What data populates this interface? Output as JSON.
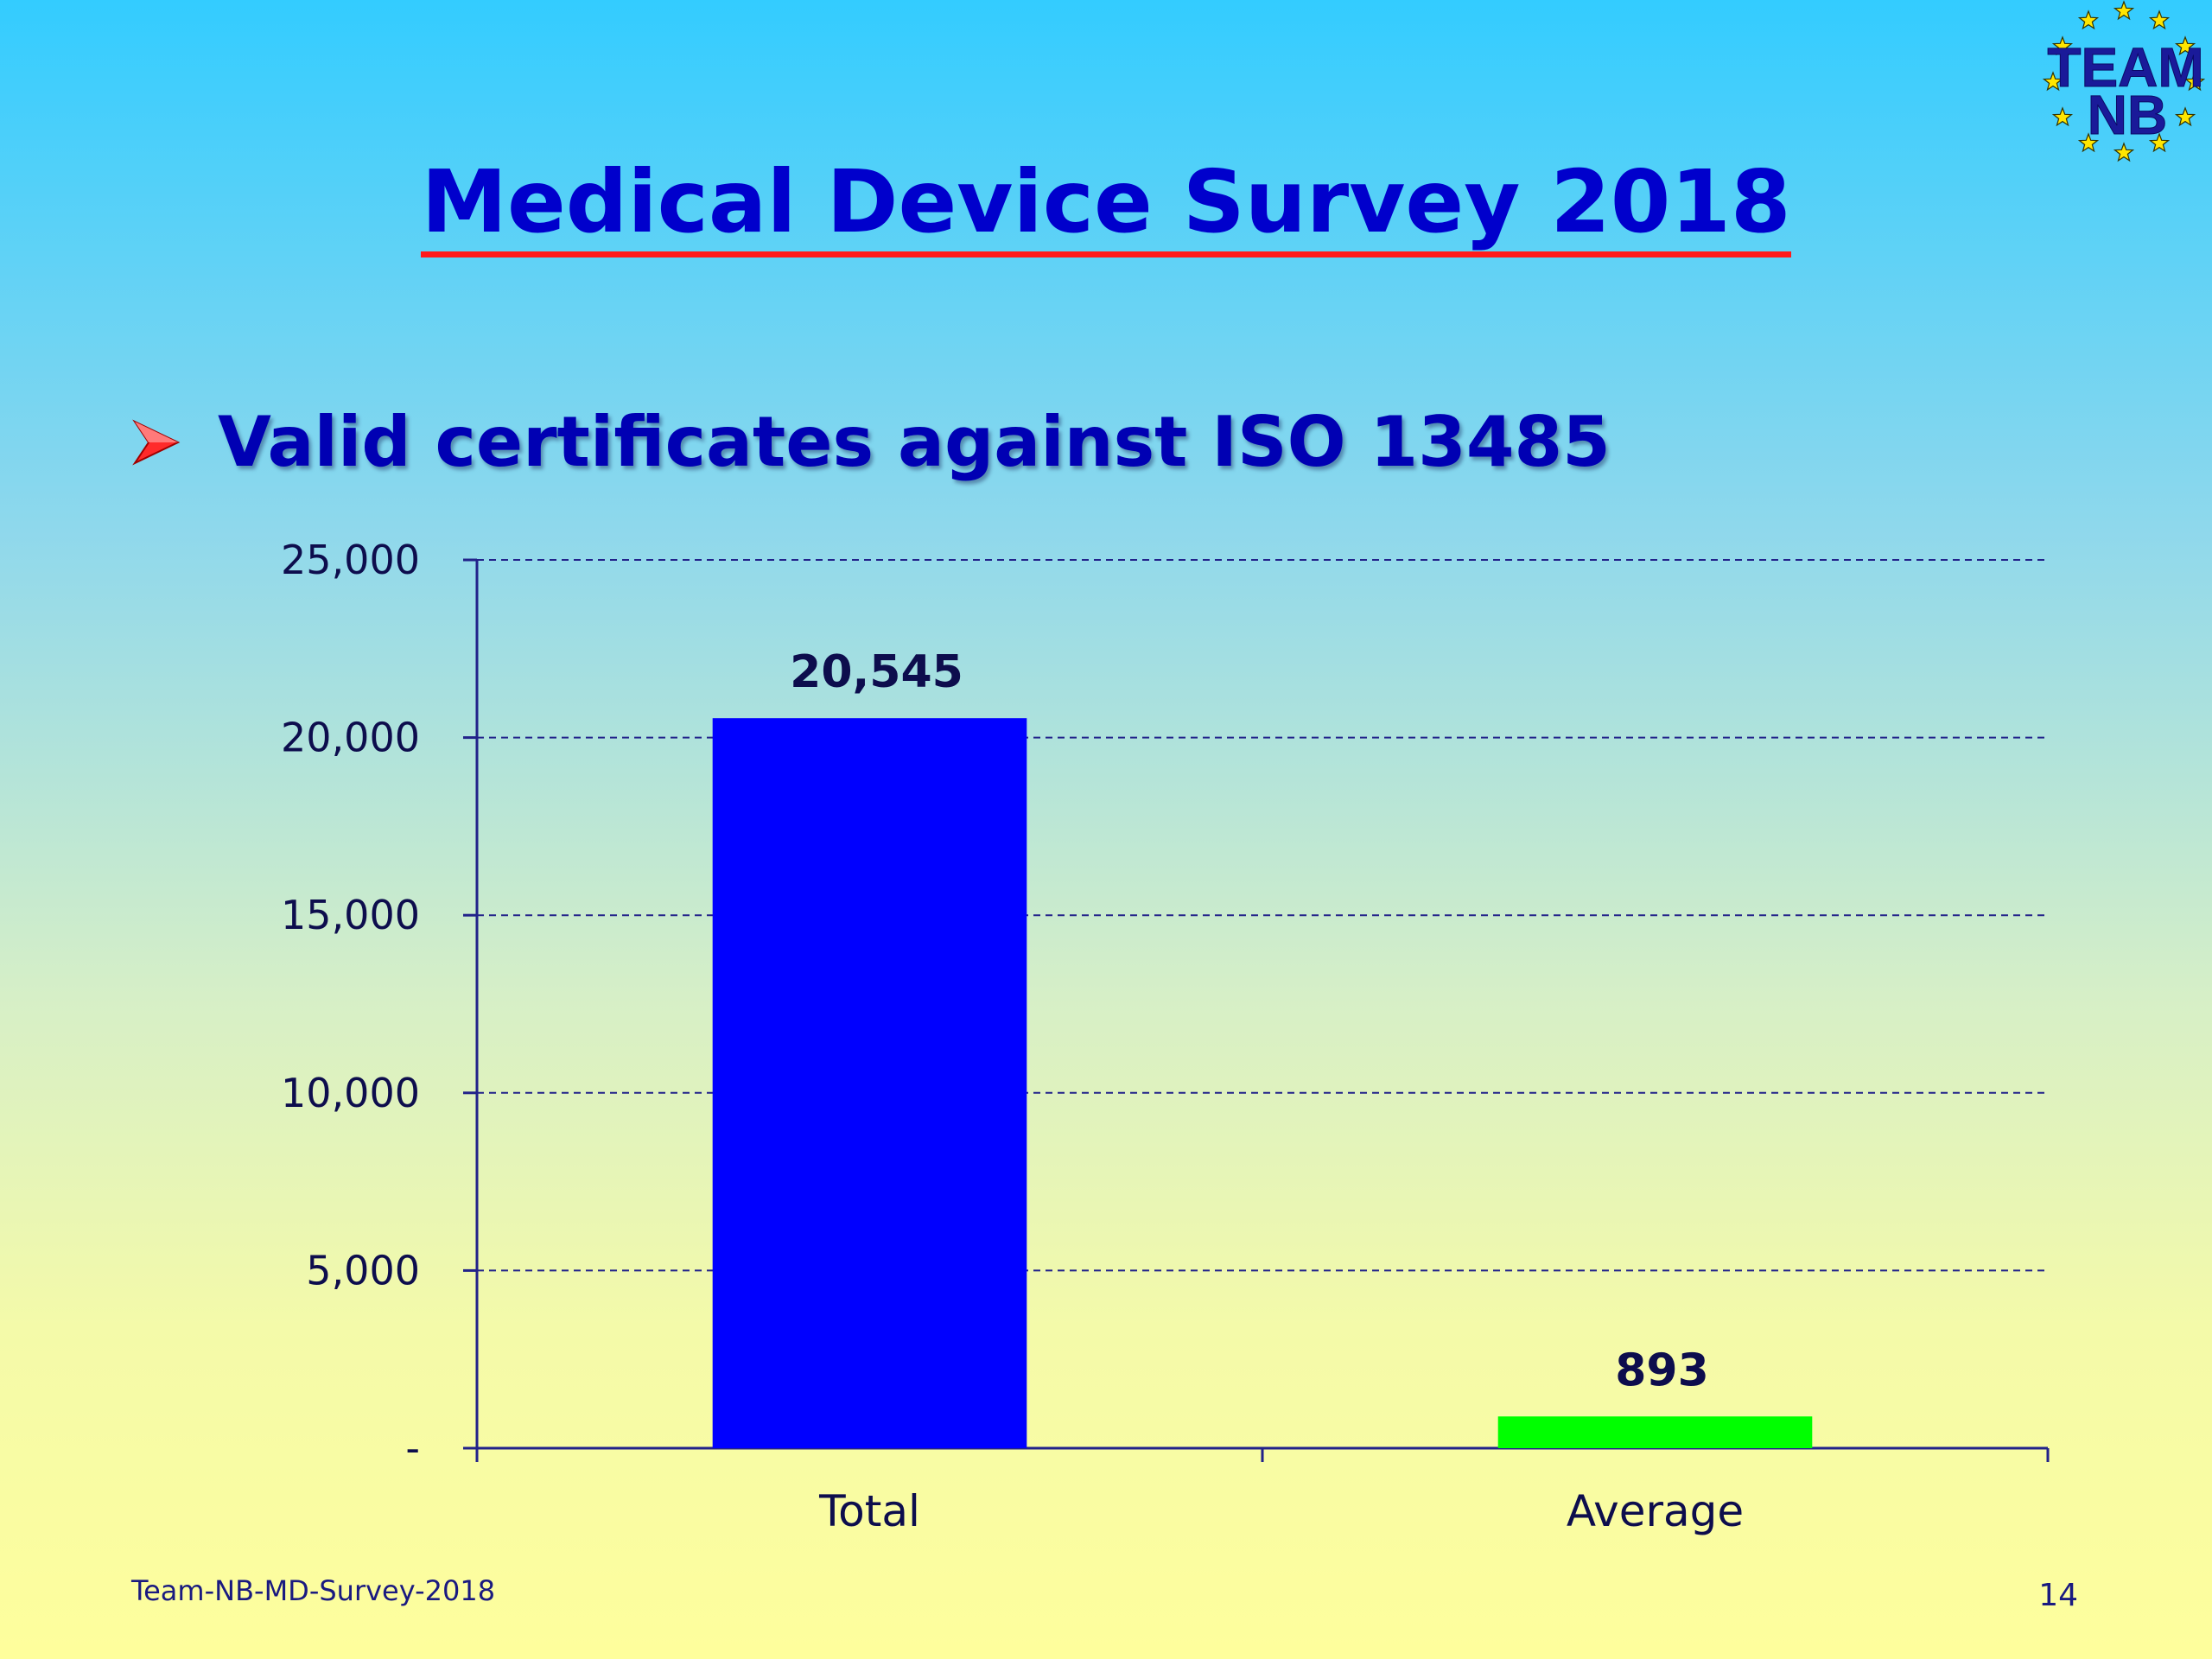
{
  "slide": {
    "title": "Medical Device Survey 2018",
    "bullet": "Valid certificates against ISO 13485",
    "footer_left": "Team-NB-MD-Survey-2018",
    "page_number": "14",
    "logo_text_top": "TEAM",
    "logo_text_bottom": "NB",
    "logo_icon": "eu-star-circle-icon",
    "bullet_icon": "arrow-bullet-icon"
  },
  "chart_data": {
    "type": "bar",
    "categories": [
      "Total",
      "Average"
    ],
    "values": [
      20545,
      893
    ],
    "data_labels": [
      "20,545",
      "893"
    ],
    "colors": [
      "#0000ff",
      "#00ff00"
    ],
    "ylim": [
      0,
      25000
    ],
    "yticks": [
      0,
      5000,
      10000,
      15000,
      20000,
      25000
    ],
    "ytick_labels": [
      "-",
      "5,000",
      "10,000",
      "15,000",
      "20,000",
      "25,000"
    ],
    "grid": true,
    "grid_style": "dashed"
  }
}
